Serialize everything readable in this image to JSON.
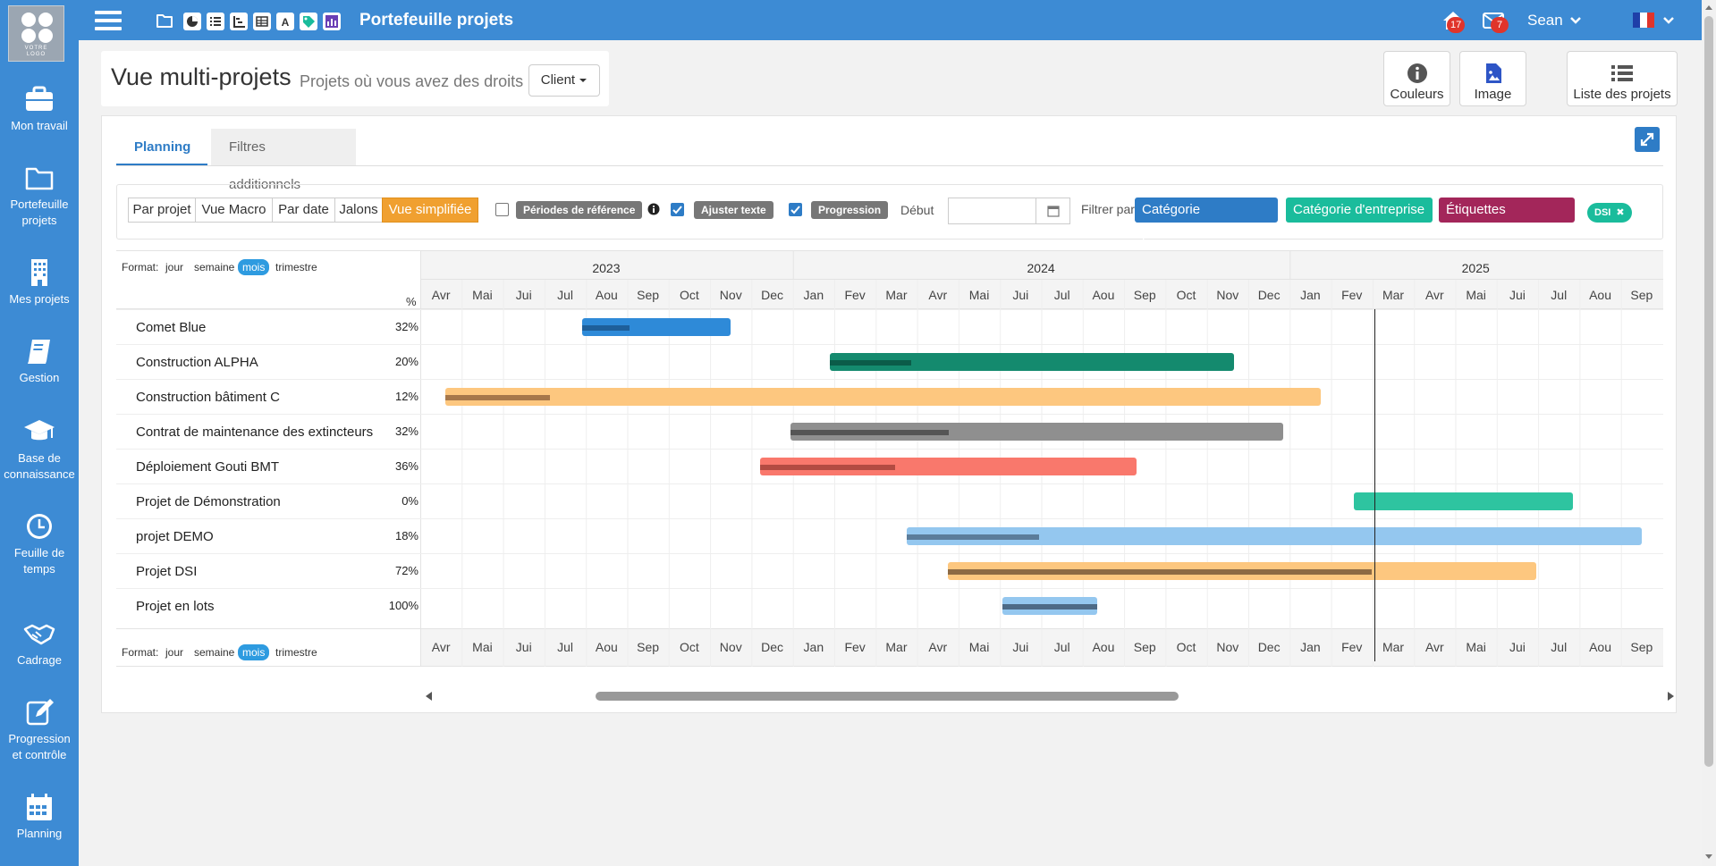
{
  "sidebar": {
    "logo_text_1": "VOTRE",
    "logo_text_2": "LOGO",
    "items": [
      {
        "label": "Mon travail",
        "icon": "briefcase-icon"
      },
      {
        "label": "Portefeuille projets",
        "icon": "folder-icon"
      },
      {
        "label": "Mes projets",
        "icon": "building-icon"
      },
      {
        "label": "Gestion",
        "icon": "book-icon"
      },
      {
        "label": "Base de connaissance",
        "icon": "graduation-cap-icon"
      },
      {
        "label": "Feuille de temps",
        "icon": "clock-icon"
      },
      {
        "label": "Cadrage",
        "icon": "handshake-icon"
      },
      {
        "label": "Progression et contrôle",
        "icon": "edit-icon"
      },
      {
        "label": "Planning",
        "icon": "calendar-icon"
      }
    ]
  },
  "topbar": {
    "title": "Portefeuille projets",
    "notifications_count": "17",
    "messages_count": "7",
    "user": "Sean",
    "color": "#3d8bd4"
  },
  "header": {
    "title": "Vue multi-projets",
    "subtitle": "Projets où vous avez des droits",
    "client_button": "Client",
    "buttons": {
      "couleurs": "Couleurs",
      "image": "Image",
      "liste": "Liste des projets"
    }
  },
  "tabs": {
    "planning": "Planning",
    "filtres": "Filtres additionnels"
  },
  "toolbar": {
    "views": [
      "Par projet",
      "Vue Macro",
      "Par date",
      "Jalons",
      "Vue simplifiée"
    ],
    "active_view": "Vue simplifiée",
    "periodes_label": "Périodes de référence",
    "ajuster_label": "Ajuster texte",
    "progression_label": "Progression",
    "debut_label": "Début",
    "debut_value": "",
    "filtrer_label": "Filtrer par",
    "filters": [
      {
        "label": "Catégorie personnelle",
        "color": "#2e7cc6"
      },
      {
        "label": "Catégorie d'entreprise",
        "color": "#1abc9c"
      },
      {
        "label": "Étiquettes d'activités",
        "color": "#a3265a"
      }
    ],
    "tag": "DSI"
  },
  "gantt": {
    "format_label": "Format:",
    "formats": [
      "jour",
      "semaine",
      "mois",
      "trimestre"
    ],
    "active_format": "mois",
    "pct_header": "%",
    "years": [
      "2023",
      "2024",
      "2025"
    ],
    "months": [
      "Avr",
      "Mai",
      "Jui",
      "Jul",
      "Aou",
      "Sep",
      "Oct",
      "Nov",
      "Dec",
      "Jan",
      "Fev",
      "Mar",
      "Avr",
      "Mai",
      "Jui",
      "Jul",
      "Aou",
      "Sep",
      "Oct",
      "Nov",
      "Dec",
      "Jan",
      "Fev",
      "Mar",
      "Avr",
      "Mai",
      "Jui",
      "Jul",
      "Aou",
      "Sep"
    ],
    "today_month": 23.05,
    "projects": [
      {
        "name": "Comet Blue",
        "pct": "32%",
        "start": 3.9,
        "end": 7.5,
        "progress": 0.32,
        "color": "#2e8ad8",
        "prog_color": "#1e5f9a"
      },
      {
        "name": "Construction ALPHA",
        "pct": "20%",
        "start": 9.9,
        "end": 19.65,
        "progress": 0.2,
        "color": "#148a6e",
        "prog_color": "#0b5c49"
      },
      {
        "name": "Construction bâtiment C",
        "pct": "12%",
        "start": 0.6,
        "end": 21.75,
        "progress": 0.12,
        "color": "#fdc77f",
        "prog_color": "#a6774a"
      },
      {
        "name": "Contrat de maintenance des extincteurs",
        "pct": "32%",
        "start": 8.95,
        "end": 20.85,
        "progress": 0.32,
        "color": "#8f8f8f",
        "prog_color": "#555555"
      },
      {
        "name": "Déploiement Gouti BMT",
        "pct": "36%",
        "start": 8.2,
        "end": 17.3,
        "progress": 0.36,
        "color": "#f9786c",
        "prog_color": "#b34b42"
      },
      {
        "name": "Projet de Démonstration",
        "pct": "0%",
        "start": 22.55,
        "end": 27.85,
        "progress": 0,
        "color": "#2ec4a0",
        "prog_color": "#1b7e66"
      },
      {
        "name": "projet DEMO",
        "pct": "18%",
        "start": 11.75,
        "end": 29.5,
        "progress": 0.18,
        "color": "#94c7ef",
        "prog_color": "#5b7c9a"
      },
      {
        "name": "Projet DSI",
        "pct": "72%",
        "start": 12.75,
        "end": 26.95,
        "progress": 0.72,
        "color": "#fdc77f",
        "prog_color": "#8d6a44"
      },
      {
        "name": "Projet en lots",
        "pct": "100%",
        "start": 14.05,
        "end": 16.35,
        "progress": 1,
        "color": "#94c7ef",
        "prog_color": "#4d6a86"
      }
    ]
  }
}
